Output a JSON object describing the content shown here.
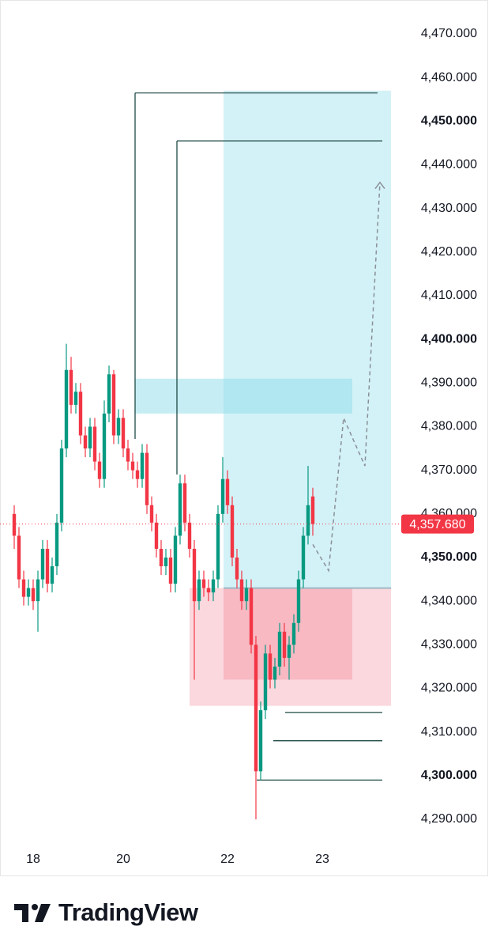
{
  "chart_data": {
    "type": "candlestick",
    "categories": [
      null,
      null,
      null,
      null,
      "18",
      null,
      null,
      null,
      null,
      null,
      null,
      null,
      null,
      null,
      null,
      null,
      null,
      null,
      null,
      null,
      null,
      null,
      null,
      "20",
      null,
      null,
      null,
      null,
      null,
      null,
      null,
      null,
      null,
      null,
      null,
      null,
      null,
      null,
      null,
      null,
      null,
      null,
      null,
      null,
      null,
      "22",
      null,
      null,
      null,
      null,
      null,
      null,
      null,
      null,
      null,
      null,
      null,
      null,
      null,
      null,
      null,
      null,
      null,
      null,
      null,
      "23"
    ],
    "open": [
      4360,
      4355,
      4345,
      4341,
      4343,
      4340,
      4345,
      4352,
      4344,
      4348,
      4358,
      4375,
      4393,
      4385,
      4388,
      4378,
      4375,
      4380,
      4372,
      4368,
      4383,
      4392,
      4378,
      4382,
      4375,
      4372,
      4370,
      4368,
      4374,
      4362,
      4358,
      4352,
      4348,
      4350,
      4344,
      4355,
      4367,
      4358,
      4352,
      4340,
      4345,
      4343,
      4342,
      4345,
      4360,
      4368,
      4362,
      4350,
      4345,
      4340,
      4343,
      4330,
      4301,
      4315,
      4328,
      4322,
      4325,
      4333,
      4327,
      4330,
      4335,
      4345,
      4355,
      4364,
      null,
      null
    ],
    "high": [
      4362,
      4357,
      4347,
      4345,
      4345,
      4347,
      4354,
      4354,
      4350,
      4360,
      4377,
      4399,
      4396,
      4390,
      4390,
      4380,
      4382,
      4382,
      4374,
      4386,
      4394,
      4393,
      4384,
      4384,
      4377,
      4374,
      4372,
      4376,
      4376,
      4364,
      4360,
      4354,
      4352,
      4352,
      4357,
      4369,
      4369,
      4360,
      4354,
      4347,
      4347,
      4345,
      4347,
      4362,
      4373,
      4370,
      4364,
      4352,
      4347,
      4345,
      4345,
      4332,
      4317,
      4330,
      4330,
      4327,
      4335,
      4335,
      4332,
      4337,
      4347,
      4357,
      4371,
      4366,
      null,
      null
    ],
    "low": [
      4352,
      4343,
      4339,
      4339,
      4338,
      4333,
      4343,
      4342,
      4342,
      4346,
      4356,
      4373,
      4383,
      4383,
      4376,
      4373,
      4373,
      4370,
      4366,
      4366,
      4381,
      4376,
      4376,
      4373,
      4370,
      4368,
      4366,
      4366,
      4360,
      4356,
      4350,
      4346,
      4346,
      4342,
      4342,
      4353,
      4356,
      4350,
      4322,
      4338,
      4341,
      4340,
      4340,
      4343,
      4358,
      4360,
      4348,
      4343,
      4338,
      4338,
      4328,
      4290,
      4299,
      4313,
      4320,
      4320,
      4323,
      4325,
      4322,
      4328,
      4333,
      4343,
      4353,
      4355,
      null,
      null
    ],
    "close": [
      4355,
      4345,
      4341,
      4343,
      4340,
      4345,
      4352,
      4344,
      4348,
      4358,
      4375,
      4393,
      4385,
      4388,
      4378,
      4375,
      4380,
      4372,
      4368,
      4383,
      4392,
      4378,
      4382,
      4375,
      4372,
      4370,
      4368,
      4374,
      4362,
      4358,
      4352,
      4348,
      4350,
      4344,
      4355,
      4367,
      4358,
      4352,
      4340,
      4345,
      4343,
      4342,
      4345,
      4360,
      4368,
      4362,
      4350,
      4345,
      4340,
      4343,
      4330,
      4301,
      4315,
      4328,
      4322,
      4325,
      4333,
      4327,
      4330,
      4335,
      4345,
      4355,
      4362,
      4357.68,
      null,
      null
    ],
    "up_color": "#089981",
    "down_color": "#f23645",
    "last_label": "4,357.680",
    "levels": [
      4456.5,
      4445.5,
      4314.5,
      4308,
      4299
    ],
    "target_zone": [
      4343,
      4457
    ],
    "stop_zone": [
      4316,
      4343
    ],
    "supply_box": [
      4383,
      4391
    ],
    "demand_box": [
      4322,
      4343
    ],
    "projection": [
      4353,
      4347,
      4382,
      4371,
      4436
    ],
    "ylim": [
      4290,
      4470
    ],
    "yticks": [
      {
        "value": 4290,
        "label": "4,290.000"
      },
      {
        "value": 4300,
        "label": "4,300.000"
      },
      {
        "value": 4310,
        "label": "4,310.000"
      },
      {
        "value": 4320,
        "label": "4,320.000"
      },
      {
        "value": 4330,
        "label": "4,330.000"
      },
      {
        "value": 4340,
        "label": "4,340.000"
      },
      {
        "value": 4350,
        "label": "4,350.000"
      },
      {
        "value": 4360,
        "label": "4,360.000"
      },
      {
        "value": 4370,
        "label": "4,370.000"
      },
      {
        "value": 4380,
        "label": "4,380.000"
      },
      {
        "value": 4390,
        "label": "4,390.000"
      },
      {
        "value": 4400,
        "label": "4,400.000"
      },
      {
        "value": 4410,
        "label": "4,410.000"
      },
      {
        "value": 4420,
        "label": "4,420.000"
      },
      {
        "value": 4430,
        "label": "4,430.000"
      },
      {
        "value": 4440,
        "label": "4,440.000"
      },
      {
        "value": 4450,
        "label": "4,450.000"
      },
      {
        "value": 4460,
        "label": "4,460.000"
      },
      {
        "value": 4470,
        "label": "4,470.000"
      }
    ]
  },
  "brand": "TradingView"
}
